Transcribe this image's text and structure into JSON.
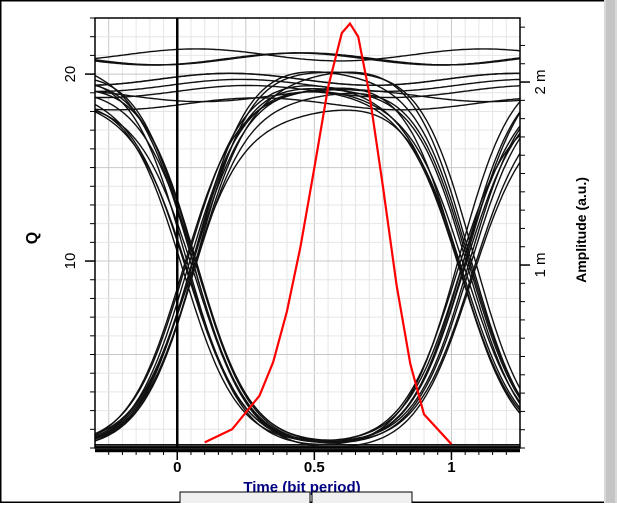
{
  "chart_data": {
    "type": "line",
    "title": "",
    "xlabel": "Time (bit period)",
    "ylabel_left": "Q",
    "ylabel_right": "Amplitude (a.u.)",
    "xlim": [
      -0.3,
      1.25
    ],
    "ylim_left": [
      0,
      23
    ],
    "ylim_right": [
      0,
      2.35
    ],
    "x_ticks": [
      {
        "value": 0,
        "label": "0"
      },
      {
        "value": 0.5,
        "label": "0.5"
      },
      {
        "value": 1,
        "label": "1"
      }
    ],
    "y_left_ticks": [
      {
        "value": 10,
        "label": "10"
      },
      {
        "value": 20,
        "label": "20"
      }
    ],
    "y_right_ticks": [
      {
        "value": 1,
        "label": "1 m"
      },
      {
        "value": 2,
        "label": "2 m"
      }
    ],
    "grid": true,
    "colors": {
      "eye_traces": "#111111",
      "q_curve": "#ff0000",
      "axis_text_right": "#c8a000"
    },
    "series": [
      {
        "color": "#ff0000",
        "axis": "left",
        "x": [
          0.1,
          0.2,
          0.3,
          0.35,
          0.4,
          0.45,
          0.5,
          0.55,
          0.6,
          0.63,
          0.66,
          0.7,
          0.75,
          0.8,
          0.85,
          0.9,
          1.0
        ],
        "values": [
          0.3,
          1.0,
          2.8,
          4.6,
          7.3,
          10.8,
          15.0,
          19.3,
          22.2,
          22.7,
          22.0,
          19.0,
          14.0,
          8.7,
          4.5,
          1.8,
          0.2
        ]
      }
    ],
    "eye_diagram": {
      "bit_center": 0.6,
      "crossings": [
        0.05,
        1.05
      ],
      "level_high_mA": 2.0,
      "level_low_mA": 0.0,
      "trace_count": 40
    }
  }
}
